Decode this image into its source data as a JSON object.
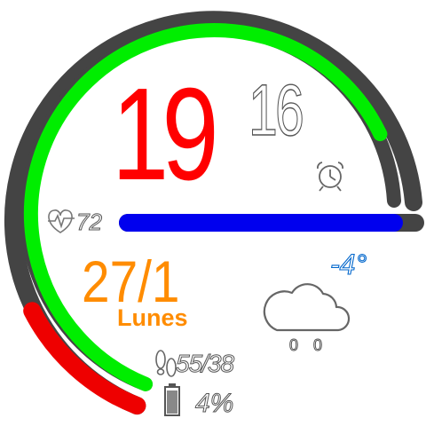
{
  "time": {
    "hour": "19",
    "minute": "16"
  },
  "heart_rate": {
    "value": "72",
    "icon": "heart-pulse-icon"
  },
  "date": {
    "day_month": "27/1",
    "weekday": "Lunes"
  },
  "weather": {
    "temperature": "-4°",
    "precipitation": "0 0",
    "icon": "cloud-icon"
  },
  "activity": {
    "steps": "55/38",
    "icon": "footprints-icon"
  },
  "battery": {
    "level": "4%",
    "icon": "battery-icon"
  },
  "alarm": {
    "icon": "alarm-clock-icon"
  },
  "colors": {
    "track": "#444444",
    "progress_green": "#00ee00",
    "progress_red": "#ee0000",
    "bar_blue": "#0000ee",
    "hour": "#ff0000",
    "date": "#ff8c00",
    "temperature_outline": "#0066cc"
  }
}
